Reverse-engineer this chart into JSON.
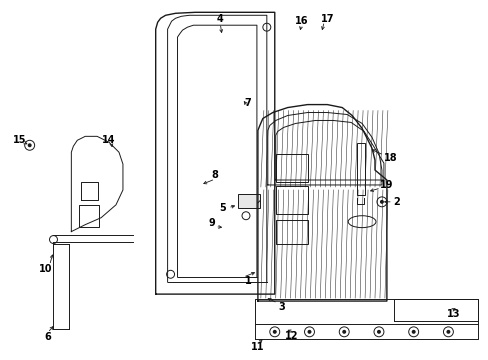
{
  "bg_color": "#ffffff",
  "line_color": "#1a1a1a",
  "label_color": "#000000",
  "fig_width": 4.89,
  "fig_height": 3.6,
  "dpi": 100
}
